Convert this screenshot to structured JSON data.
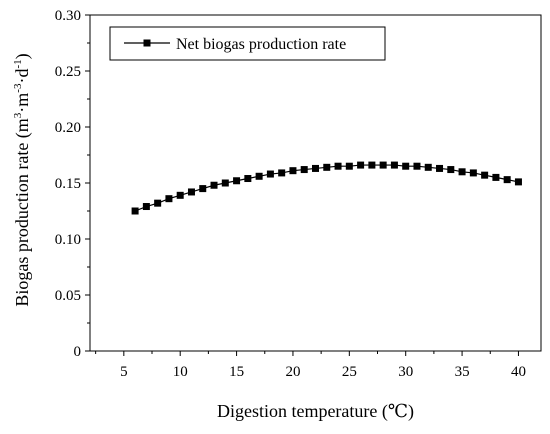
{
  "chart_data": {
    "type": "line",
    "title": "",
    "xlabel": "Digestion temperature (℃)",
    "ylabel_main": "Biogas production rate (m",
    "ylabel_sup1": "3",
    "ylabel_mid": "·m",
    "ylabel_sup2": "-3",
    "ylabel_mid2": "·d",
    "ylabel_sup3": "-1",
    "ylabel_end": ")",
    "xlim": [
      2,
      42
    ],
    "ylim": [
      0,
      0.3
    ],
    "xticks": [
      5,
      10,
      15,
      20,
      25,
      30,
      35,
      40
    ],
    "xtick_labels": [
      "5",
      "10",
      "15",
      "20",
      "25",
      "30",
      "35",
      "40"
    ],
    "yticks": [
      0,
      0.05,
      0.1,
      0.15,
      0.2,
      0.25,
      0.3
    ],
    "ytick_labels": [
      "0",
      "0.05",
      "0.10",
      "0.15",
      "0.20",
      "0.25",
      "0.30"
    ],
    "grid": false,
    "legend_position": "top-left",
    "series": [
      {
        "name": "Net biogas production rate",
        "color": "#000000",
        "marker": "square",
        "x": [
          6,
          7,
          8,
          9,
          10,
          11,
          12,
          13,
          14,
          15,
          16,
          17,
          18,
          19,
          20,
          21,
          22,
          23,
          24,
          25,
          26,
          27,
          28,
          29,
          30,
          31,
          32,
          33,
          34,
          35,
          36,
          37,
          38,
          39,
          40
        ],
        "y": [
          0.125,
          0.129,
          0.132,
          0.136,
          0.139,
          0.142,
          0.145,
          0.148,
          0.15,
          0.152,
          0.154,
          0.156,
          0.158,
          0.159,
          0.161,
          0.162,
          0.163,
          0.164,
          0.165,
          0.165,
          0.166,
          0.166,
          0.166,
          0.166,
          0.165,
          0.165,
          0.164,
          0.163,
          0.162,
          0.16,
          0.159,
          0.157,
          0.155,
          0.153,
          0.151
        ]
      }
    ]
  }
}
